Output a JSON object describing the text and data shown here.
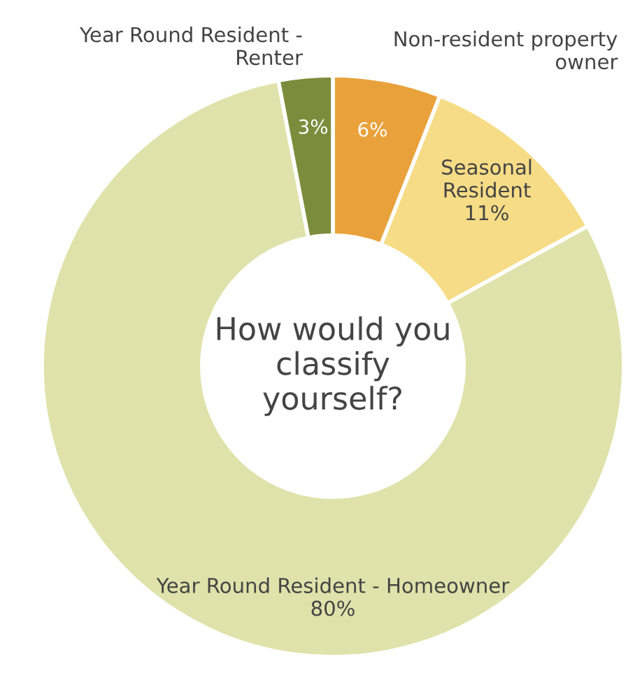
{
  "chart_data": {
    "type": "donut",
    "title": "How would you classify yourself?",
    "categories": [
      "Non-resident property owner",
      "Seasonal Resident",
      "Year Round Resident - Homeowner",
      "Year Round Resident - Renter"
    ],
    "values": [
      6,
      11,
      80,
      3
    ],
    "colors": [
      "#e9a23b",
      "#f6dc86",
      "#dfe2aa",
      "#7d8c3c"
    ],
    "value_labels": [
      "6%",
      "11%",
      "80%",
      "3%"
    ]
  }
}
